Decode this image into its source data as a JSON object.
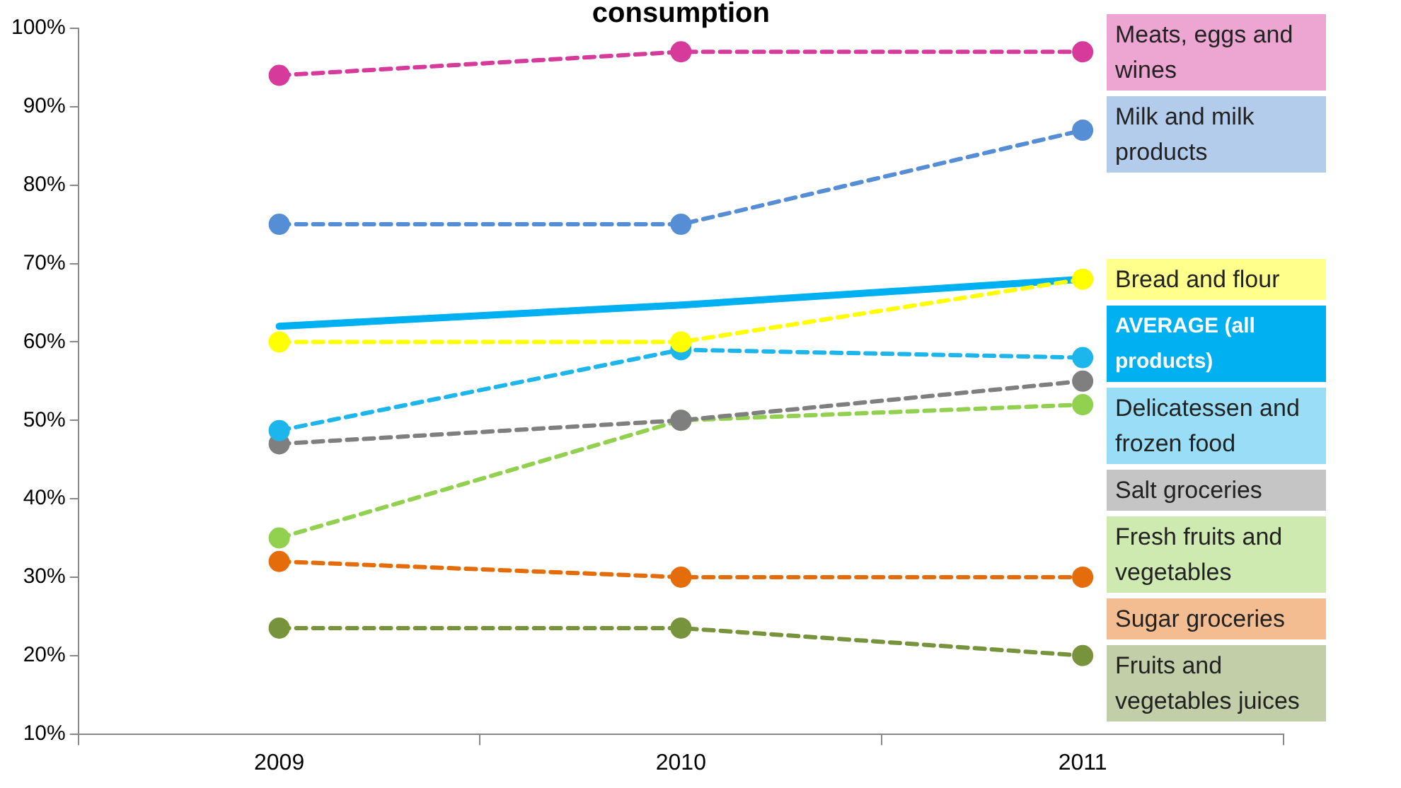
{
  "chart_data": {
    "type": "line",
    "title": "consumption",
    "categories": [
      "2009",
      "2010",
      "2011"
    ],
    "series": [
      {
        "name": "Meats, eggs and wines",
        "color": "#d63a9a",
        "line_style": "dashed",
        "marker": "circle",
        "values": [
          94,
          97,
          97
        ]
      },
      {
        "name": "Milk and milk products",
        "color": "#558ed5",
        "line_style": "dashed",
        "marker": "circle",
        "values": [
          75,
          75,
          87
        ]
      },
      {
        "name": "Bread and flour",
        "color": "#ffff00",
        "line_style": "dashed",
        "marker": "circle",
        "values": [
          60,
          60,
          68
        ]
      },
      {
        "name": "AVERAGE (all products)",
        "color": "#00b0f0",
        "line_style": "solid",
        "marker": "none",
        "values": [
          62,
          64.7,
          68
        ]
      },
      {
        "name": "Delicatessen and frozen food",
        "color": "#1cb5ec",
        "line_style": "dashed",
        "marker": "circle",
        "values": [
          48.7,
          59,
          58
        ]
      },
      {
        "name": "Salt groceries",
        "color": "#7f7f7f",
        "line_style": "dashed",
        "marker": "circle",
        "values": [
          47,
          50,
          55
        ]
      },
      {
        "name": "Fresh fruits and vegetables",
        "color": "#92d050",
        "line_style": "dashed",
        "marker": "circle",
        "values": [
          35,
          50,
          52
        ]
      },
      {
        "name": "Sugar groceries",
        "color": "#e46c0a",
        "line_style": "dashed",
        "marker": "circle",
        "values": [
          32,
          30,
          30
        ]
      },
      {
        "name": "Fruits and vegetables juices",
        "color": "#77933c",
        "line_style": "dashed",
        "marker": "circle",
        "values": [
          23.5,
          23.5,
          20
        ]
      }
    ],
    "ylim": [
      10,
      100
    ],
    "yticks": [
      {
        "value": 10,
        "label": "10%"
      },
      {
        "value": 20,
        "label": "20%"
      },
      {
        "value": 30,
        "label": "30%"
      },
      {
        "value": 40,
        "label": "40%"
      },
      {
        "value": 50,
        "label": "50%"
      },
      {
        "value": 60,
        "label": "60%"
      },
      {
        "value": 70,
        "label": "70%"
      },
      {
        "value": 80,
        "label": "80%"
      },
      {
        "value": 90,
        "label": "90%"
      },
      {
        "value": 100,
        "label": "100%"
      }
    ],
    "grid": false,
    "legend": false
  }
}
